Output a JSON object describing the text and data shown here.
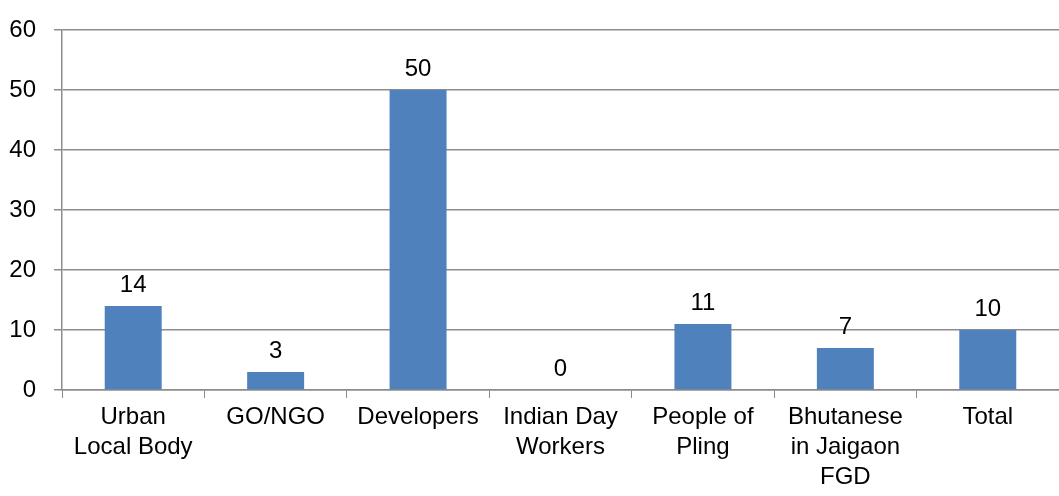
{
  "chart_data": {
    "type": "bar",
    "categories": [
      "Urban Local Body",
      "GO/NGO",
      "Developers",
      "Indian Day Workers",
      "People of Pling",
      "Bhutanese in Jaigaon FGD",
      "Total"
    ],
    "values": [
      14,
      3,
      50,
      0,
      11,
      7,
      10
    ],
    "color": "#4f81bd",
    "ylim": [
      0,
      60
    ],
    "yticks": [
      0,
      10,
      20,
      30,
      40,
      50,
      60
    ],
    "grid": "y",
    "data_labels": true
  }
}
